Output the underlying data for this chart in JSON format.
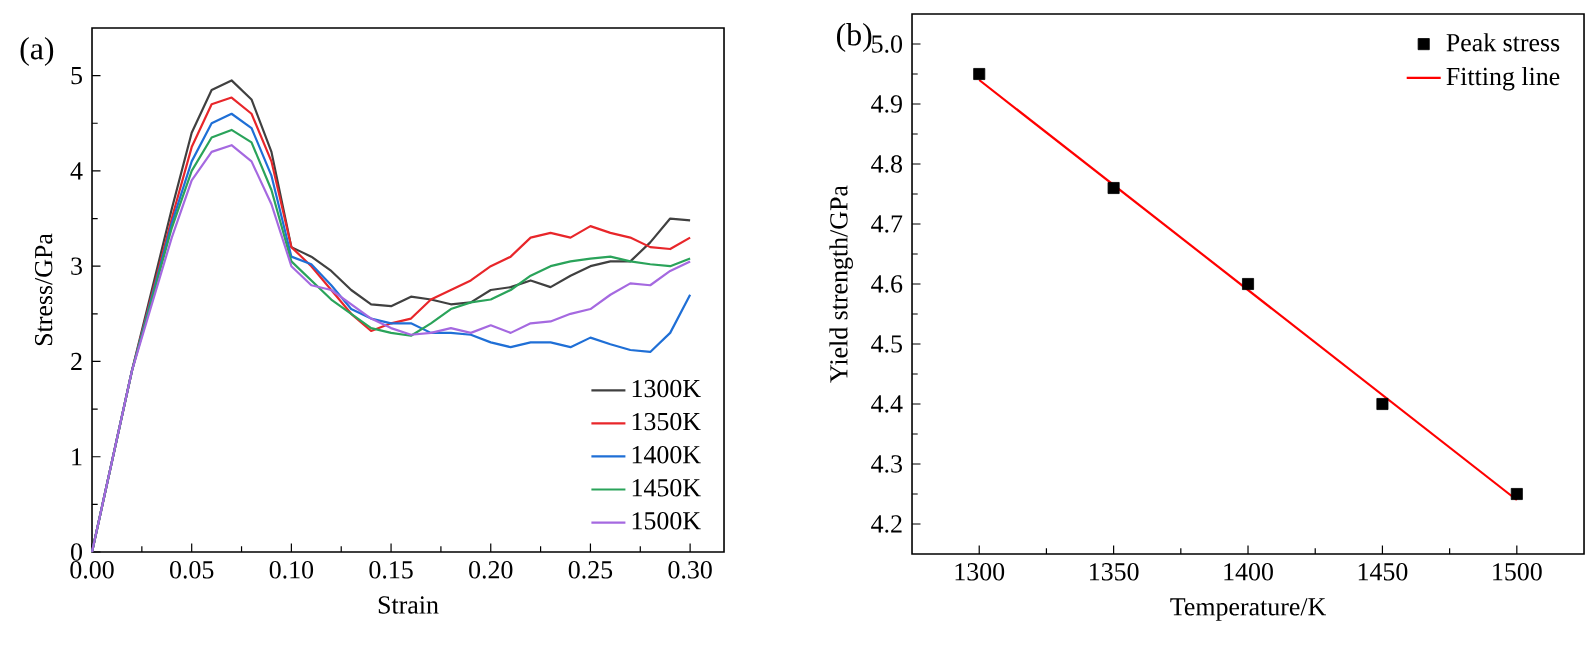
{
  "chart_data": [
    {
      "type": "line",
      "xlabel": "Strain",
      "ylabel": "Stress/GPa",
      "annotations": [
        "(a)"
      ],
      "legend": "bottom right",
      "xlim": [
        0,
        0.317
      ],
      "ylim": [
        0,
        5.5
      ],
      "xticks": [
        {
          "value": 0,
          "label": "0.00"
        },
        {
          "value": 0.05,
          "label": "0.05"
        },
        {
          "value": 0.1,
          "label": "0.10"
        },
        {
          "value": 0.15,
          "label": "0.15"
        },
        {
          "value": 0.2,
          "label": "0.20"
        },
        {
          "value": 0.25,
          "label": "0.25"
        },
        {
          "value": 0.3,
          "label": "0.30"
        }
      ],
      "yticks": [
        0,
        1,
        2,
        3,
        4,
        5
      ],
      "x": [
        0,
        0.02,
        0.04,
        0.05,
        0.06,
        0.07,
        0.08,
        0.09,
        0.1,
        0.11,
        0.12,
        0.13,
        0.14,
        0.15,
        0.16,
        0.17,
        0.18,
        0.19,
        0.2,
        0.21,
        0.22,
        0.23,
        0.24,
        0.25,
        0.26,
        0.27,
        0.28,
        0.29,
        0.3
      ],
      "series": [
        {
          "name": "1300K",
          "color": "#404040",
          "values": [
            0,
            1.9,
            3.6,
            4.4,
            4.85,
            4.95,
            4.75,
            4.2,
            3.2,
            3.1,
            2.95,
            2.75,
            2.6,
            2.58,
            2.68,
            2.65,
            2.6,
            2.62,
            2.75,
            2.78,
            2.85,
            2.78,
            2.9,
            3.0,
            3.05,
            3.05,
            3.25,
            3.5,
            3.48
          ]
        },
        {
          "name": "1350K",
          "color": "#e8262a",
          "values": [
            0,
            1.9,
            3.5,
            4.25,
            4.7,
            4.77,
            4.6,
            4.1,
            3.2,
            3.0,
            2.75,
            2.5,
            2.32,
            2.4,
            2.45,
            2.65,
            2.75,
            2.85,
            3.0,
            3.1,
            3.3,
            3.35,
            3.3,
            3.42,
            3.35,
            3.3,
            3.2,
            3.18,
            3.3
          ]
        },
        {
          "name": "1400K",
          "color": "#1f6fd6",
          "values": [
            0,
            1.9,
            3.45,
            4.1,
            4.5,
            4.6,
            4.45,
            3.95,
            3.1,
            3.02,
            2.8,
            2.55,
            2.45,
            2.4,
            2.4,
            2.3,
            2.3,
            2.28,
            2.2,
            2.15,
            2.2,
            2.2,
            2.15,
            2.25,
            2.18,
            2.12,
            2.1,
            2.3,
            2.7
          ]
        },
        {
          "name": "1450K",
          "color": "#2aa35a",
          "values": [
            0,
            1.9,
            3.4,
            4.0,
            4.35,
            4.43,
            4.3,
            3.8,
            3.05,
            2.85,
            2.65,
            2.5,
            2.35,
            2.3,
            2.27,
            2.4,
            2.55,
            2.62,
            2.65,
            2.75,
            2.9,
            3.0,
            3.05,
            3.08,
            3.1,
            3.05,
            3.02,
            3.0,
            3.08
          ]
        },
        {
          "name": "1500K",
          "color": "#a569e0",
          "values": [
            0,
            1.9,
            3.3,
            3.9,
            4.2,
            4.27,
            4.1,
            3.65,
            3.0,
            2.8,
            2.75,
            2.6,
            2.45,
            2.35,
            2.28,
            2.3,
            2.35,
            2.3,
            2.38,
            2.3,
            2.4,
            2.42,
            2.5,
            2.55,
            2.7,
            2.82,
            2.8,
            2.95,
            3.05
          ]
        }
      ]
    },
    {
      "type": "line",
      "xlabel": "Temperature/K",
      "ylabel": "Yield strength/GPa",
      "annotations": [
        "(b)"
      ],
      "legend": "top right",
      "xlim": [
        1275,
        1525
      ],
      "ylim": [
        4.15,
        5.05
      ],
      "xticks": [
        1300,
        1350,
        1400,
        1450,
        1500
      ],
      "yticks": [
        4.2,
        4.3,
        4.4,
        4.5,
        4.6,
        4.7,
        4.8,
        4.9,
        {
          "value": 5.0,
          "label": "5.0"
        }
      ],
      "series": [
        {
          "name": "Peak stress",
          "type": "scatter",
          "marker": "square",
          "color": "#000000",
          "x": [
            1300,
            1350,
            1400,
            1450,
            1500
          ],
          "values": [
            4.95,
            4.76,
            4.6,
            4.4,
            4.25
          ]
        },
        {
          "name": "Fitting line",
          "type": "line",
          "color": "#ff0000",
          "x": [
            1300,
            1500
          ],
          "values": [
            4.94,
            4.24
          ]
        }
      ]
    }
  ]
}
